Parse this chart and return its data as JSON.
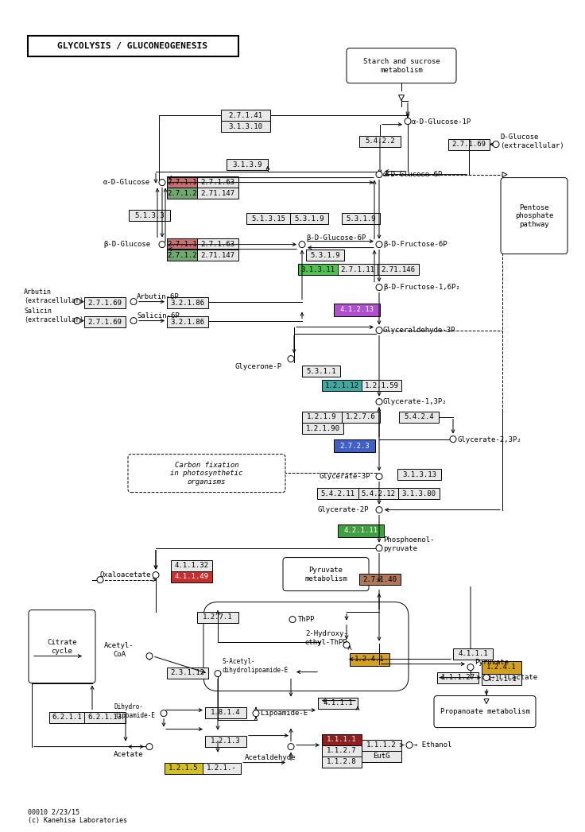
{
  "title": "GLYCOLYSIS / GLUCONEOGENESIS",
  "footnote": "00010 2/23/15\n(c) Kanehisa Laboratories",
  "bg": "#ffffff"
}
